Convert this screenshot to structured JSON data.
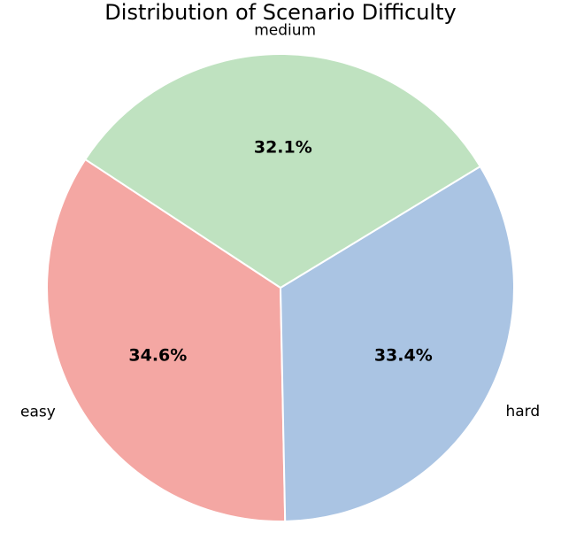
{
  "chart_data": {
    "type": "pie",
    "title": "Distribution of Scenario Difficulty",
    "categories": [
      "easy",
      "hard",
      "medium"
    ],
    "values": [
      34.6,
      33.4,
      32.1
    ],
    "value_labels": [
      "34.6%",
      "33.4%",
      "32.1%"
    ],
    "colors": [
      "#f4a7a3",
      "#aac4e3",
      "#bfe2c0"
    ],
    "edge_color": "#ffffff",
    "legend": "none"
  }
}
